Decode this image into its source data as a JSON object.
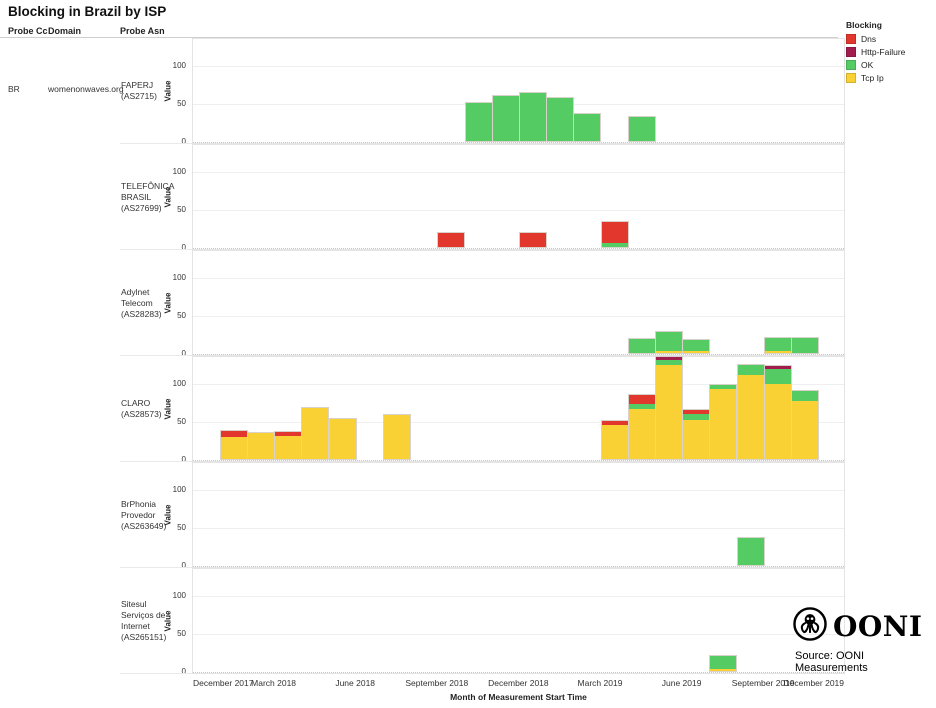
{
  "page": {
    "title": "Blocking in Brazil by ISP"
  },
  "columns": {
    "probe_cc": "Probe Cc",
    "domain": "Domain",
    "probe_asn": "Probe Asn"
  },
  "row": {
    "probe_cc": "BR",
    "domain": "womenonwaves.org"
  },
  "legend": {
    "title": "Blocking",
    "items": [
      {
        "label": "Dns",
        "color": "#e1372c"
      },
      {
        "label": "Http-Failure",
        "color": "#a01d4d"
      },
      {
        "label": "OK",
        "color": "#55cb63"
      },
      {
        "label": "Tcp Ip",
        "color": "#fad134"
      }
    ]
  },
  "footer": {
    "brand": "OONI",
    "source": "Source: OONI Measurements",
    "logo_icon": "ooni-octopus-icon"
  },
  "chart_data": {
    "type": "bar",
    "stacked": true,
    "title": "Blocking in Brazil by ISP",
    "xlabel": "Month of Measurement Start Time",
    "ylabel": "Value",
    "y_ticks": [
      0,
      50,
      100
    ],
    "ylim": [
      0,
      135
    ],
    "x_domain": [
      "December 2017",
      "December 2019"
    ],
    "stack_order_bottom_to_top": [
      "Tcp Ip",
      "OK",
      "Http-Failure",
      "Dns"
    ],
    "series_colors": {
      "Dns": "#e1372c",
      "Http-Failure": "#a01d4d",
      "OK": "#55cb63",
      "Tcp Ip": "#fad134"
    },
    "x_ticks": [
      {
        "month_index": 0,
        "label": "December 2017"
      },
      {
        "month_index": 3,
        "label": "March 2018"
      },
      {
        "month_index": 6,
        "label": "June 2018"
      },
      {
        "month_index": 9,
        "label": "September 2018"
      },
      {
        "month_index": 12,
        "label": "December 2018"
      },
      {
        "month_index": 15,
        "label": "March 2019"
      },
      {
        "month_index": 18,
        "label": "June 2019"
      },
      {
        "month_index": 21,
        "label": "September 2019"
      },
      {
        "month_index": 24,
        "label": "December 2019"
      }
    ],
    "facets": [
      {
        "probe_asn": "FAPERJ (AS2715)",
        "probe_asn_lines": [
          "FAPERJ",
          "(AS2715)"
        ],
        "bars": [
          {
            "month": "October 2018",
            "month_index": 10,
            "segments": [
              {
                "name": "OK",
                "value": 50
              }
            ]
          },
          {
            "month": "November 2018",
            "month_index": 11,
            "segments": [
              {
                "name": "OK",
                "value": 59
              }
            ]
          },
          {
            "month": "December 2018",
            "month_index": 12,
            "segments": [
              {
                "name": "OK",
                "value": 63
              }
            ]
          },
          {
            "month": "January 2019",
            "month_index": 13,
            "segments": [
              {
                "name": "OK",
                "value": 57
              }
            ]
          },
          {
            "month": "February 2019",
            "month_index": 14,
            "segments": [
              {
                "name": "OK",
                "value": 36
              }
            ]
          },
          {
            "month": "April 2019",
            "month_index": 16,
            "segments": [
              {
                "name": "OK",
                "value": 32
              }
            ]
          }
        ]
      },
      {
        "probe_asn": "TELEFÔNICA BRASIL (AS27699)",
        "probe_asn_lines": [
          "TELEFÔNICA",
          "BRASIL",
          "(AS27699)"
        ],
        "bars": [
          {
            "month": "September 2018",
            "month_index": 9,
            "segments": [
              {
                "name": "Dns",
                "value": 18
              }
            ]
          },
          {
            "month": "December 2018",
            "month_index": 12,
            "segments": [
              {
                "name": "Dns",
                "value": 18
              }
            ]
          },
          {
            "month": "March 2019",
            "month_index": 15,
            "segments": [
              {
                "name": "OK",
                "value": 5
              },
              {
                "name": "Dns",
                "value": 28
              }
            ]
          }
        ]
      },
      {
        "probe_asn": "Adylnet Telecom (AS28283)",
        "probe_asn_lines": [
          "Adylnet",
          "Telecom",
          "(AS28283)"
        ],
        "bars": [
          {
            "month": "April 2019",
            "month_index": 16,
            "segments": [
              {
                "name": "OK",
                "value": 18
              }
            ]
          },
          {
            "month": "May 2019",
            "month_index": 17,
            "segments": [
              {
                "name": "Tcp Ip",
                "value": 3
              },
              {
                "name": "OK",
                "value": 25
              }
            ]
          },
          {
            "month": "June 2019",
            "month_index": 18,
            "segments": [
              {
                "name": "Tcp Ip",
                "value": 3
              },
              {
                "name": "OK",
                "value": 15
              }
            ]
          },
          {
            "month": "September 2019",
            "month_index": 21,
            "segments": [
              {
                "name": "Tcp Ip",
                "value": 3
              },
              {
                "name": "OK",
                "value": 17
              }
            ]
          },
          {
            "month": "October 2019",
            "month_index": 22,
            "segments": [
              {
                "name": "OK",
                "value": 20
              }
            ]
          }
        ]
      },
      {
        "probe_asn": "CLARO (AS28573)",
        "probe_asn_lines": [
          "CLARO",
          "(AS28573)"
        ],
        "bars": [
          {
            "month": "January 2018",
            "month_index": 1,
            "segments": [
              {
                "name": "Tcp Ip",
                "value": 29
              },
              {
                "name": "Dns",
                "value": 8
              }
            ]
          },
          {
            "month": "February 2018",
            "month_index": 2,
            "segments": [
              {
                "name": "Tcp Ip",
                "value": 34
              }
            ]
          },
          {
            "month": "March 2018",
            "month_index": 3,
            "segments": [
              {
                "name": "Tcp Ip",
                "value": 30
              },
              {
                "name": "Dns",
                "value": 5
              }
            ]
          },
          {
            "month": "April 2018",
            "month_index": 4,
            "segments": [
              {
                "name": "Tcp Ip",
                "value": 67
              }
            ]
          },
          {
            "month": "May 2018",
            "month_index": 5,
            "segments": [
              {
                "name": "Tcp Ip",
                "value": 52
              }
            ]
          },
          {
            "month": "July 2018",
            "month_index": 7,
            "segments": [
              {
                "name": "Tcp Ip",
                "value": 58
              }
            ]
          },
          {
            "month": "March 2019",
            "month_index": 15,
            "segments": [
              {
                "name": "Tcp Ip",
                "value": 45
              },
              {
                "name": "Dns",
                "value": 5
              }
            ]
          },
          {
            "month": "April 2019",
            "month_index": 16,
            "segments": [
              {
                "name": "Tcp Ip",
                "value": 66
              },
              {
                "name": "OK",
                "value": 7
              },
              {
                "name": "Dns",
                "value": 12
              }
            ]
          },
          {
            "month": "May 2019",
            "month_index": 17,
            "segments": [
              {
                "name": "Tcp Ip",
                "value": 124
              },
              {
                "name": "OK",
                "value": 7
              },
              {
                "name": "Http-Failure",
                "value": 4
              }
            ]
          },
          {
            "month": "June 2019",
            "month_index": 18,
            "segments": [
              {
                "name": "Tcp Ip",
                "value": 51
              },
              {
                "name": "OK",
                "value": 8
              },
              {
                "name": "Dns",
                "value": 5
              }
            ]
          },
          {
            "month": "July 2019",
            "month_index": 19,
            "segments": [
              {
                "name": "Tcp Ip",
                "value": 92
              },
              {
                "name": "OK",
                "value": 5
              }
            ]
          },
          {
            "month": "August 2019",
            "month_index": 20,
            "segments": [
              {
                "name": "Tcp Ip",
                "value": 111
              },
              {
                "name": "OK",
                "value": 13
              }
            ]
          },
          {
            "month": "September 2019",
            "month_index": 21,
            "segments": [
              {
                "name": "Tcp Ip",
                "value": 99
              },
              {
                "name": "OK",
                "value": 20
              },
              {
                "name": "Http-Failure",
                "value": 4
              }
            ]
          },
          {
            "month": "October 2019",
            "month_index": 22,
            "segments": [
              {
                "name": "Tcp Ip",
                "value": 76
              },
              {
                "name": "OK",
                "value": 13
              }
            ]
          }
        ]
      },
      {
        "probe_asn": "BrPhonia Provedor (AS263649)",
        "probe_asn_lines": [
          "BrPhonia",
          "Provedor",
          "(AS263649)"
        ],
        "bars": [
          {
            "month": "August 2019",
            "month_index": 20,
            "segments": [
              {
                "name": "OK",
                "value": 35
              }
            ]
          }
        ]
      },
      {
        "probe_asn": "Sitesul Serviços de Internet (AS265151)",
        "probe_asn_lines": [
          "Sitesul",
          "Serviços de",
          "Internet",
          "(AS265151)"
        ],
        "bars": [
          {
            "month": "July 2019",
            "month_index": 19,
            "segments": [
              {
                "name": "Tcp Ip",
                "value": 3
              },
              {
                "name": "OK",
                "value": 17
              }
            ]
          }
        ]
      }
    ]
  }
}
